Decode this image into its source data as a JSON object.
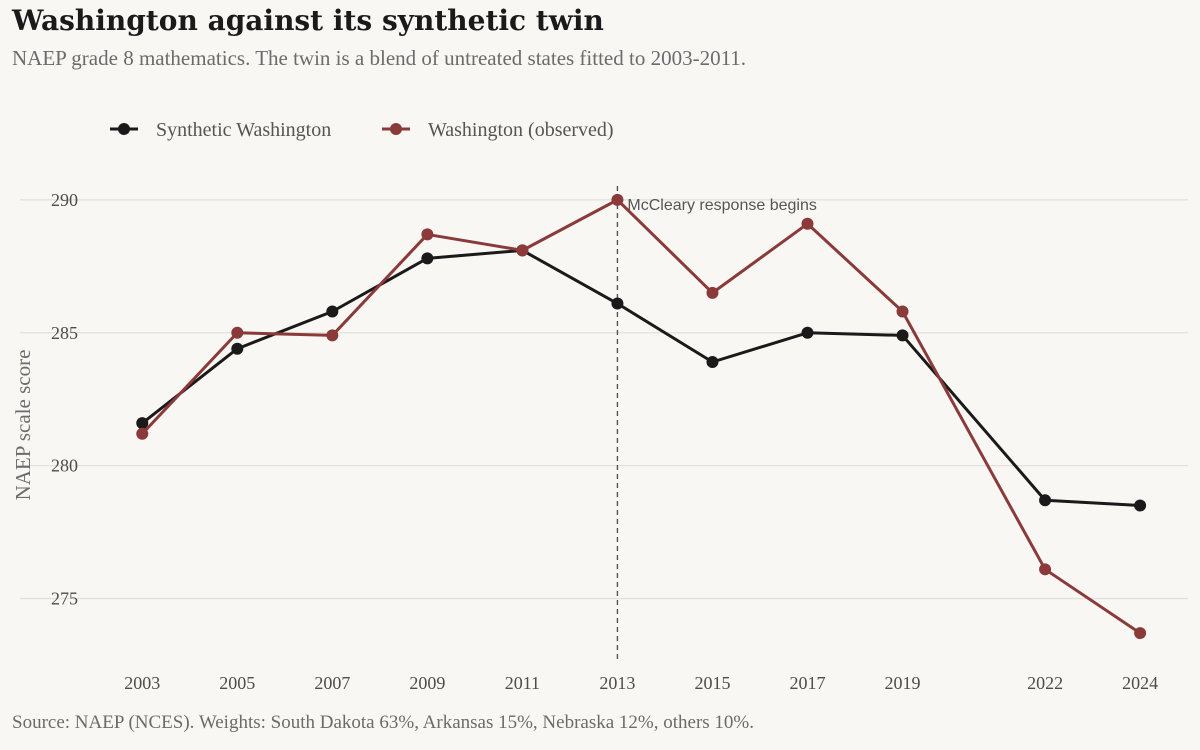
{
  "header": {
    "title": "Washington against its synthetic twin",
    "subtitle": "NAEP grade 8 mathematics. The twin is a blend of untreated states fitted to 2003-2011."
  },
  "caption": "Source: NAEP (NCES). Weights: South Dakota 63%, Arkansas 15%, Nebraska 12%, others 10%.",
  "chart_data": {
    "type": "line",
    "x": [
      2003,
      2005,
      2007,
      2009,
      2011,
      2013,
      2015,
      2017,
      2019,
      2022,
      2024
    ],
    "series": [
      {
        "name": "Synthetic Washington",
        "color": "#1a1a1a",
        "values": [
          281.6,
          284.4,
          285.8,
          287.8,
          288.1,
          286.1,
          283.9,
          285.0,
          284.9,
          278.7,
          278.5
        ]
      },
      {
        "name": "Washington (observed)",
        "color": "#8b3a3a",
        "values": [
          281.2,
          285.0,
          284.9,
          288.7,
          288.1,
          290.0,
          286.5,
          289.1,
          285.8,
          276.1,
          273.7
        ]
      }
    ],
    "ylabel": "NAEP scale score",
    "xlabel": "",
    "yticks": [
      275,
      280,
      285,
      290
    ],
    "xticks": [
      2003,
      2005,
      2007,
      2009,
      2011,
      2013,
      2015,
      2017,
      2019,
      2022,
      2024
    ],
    "ylim": [
      272.5,
      291.5
    ],
    "xlim": [
      2001.9,
      2025.05
    ],
    "grid": "horizontal",
    "legend_position": "top-left",
    "annotation": {
      "x": 2013,
      "text": "McCleary response begins",
      "line_style": "dashed"
    }
  }
}
